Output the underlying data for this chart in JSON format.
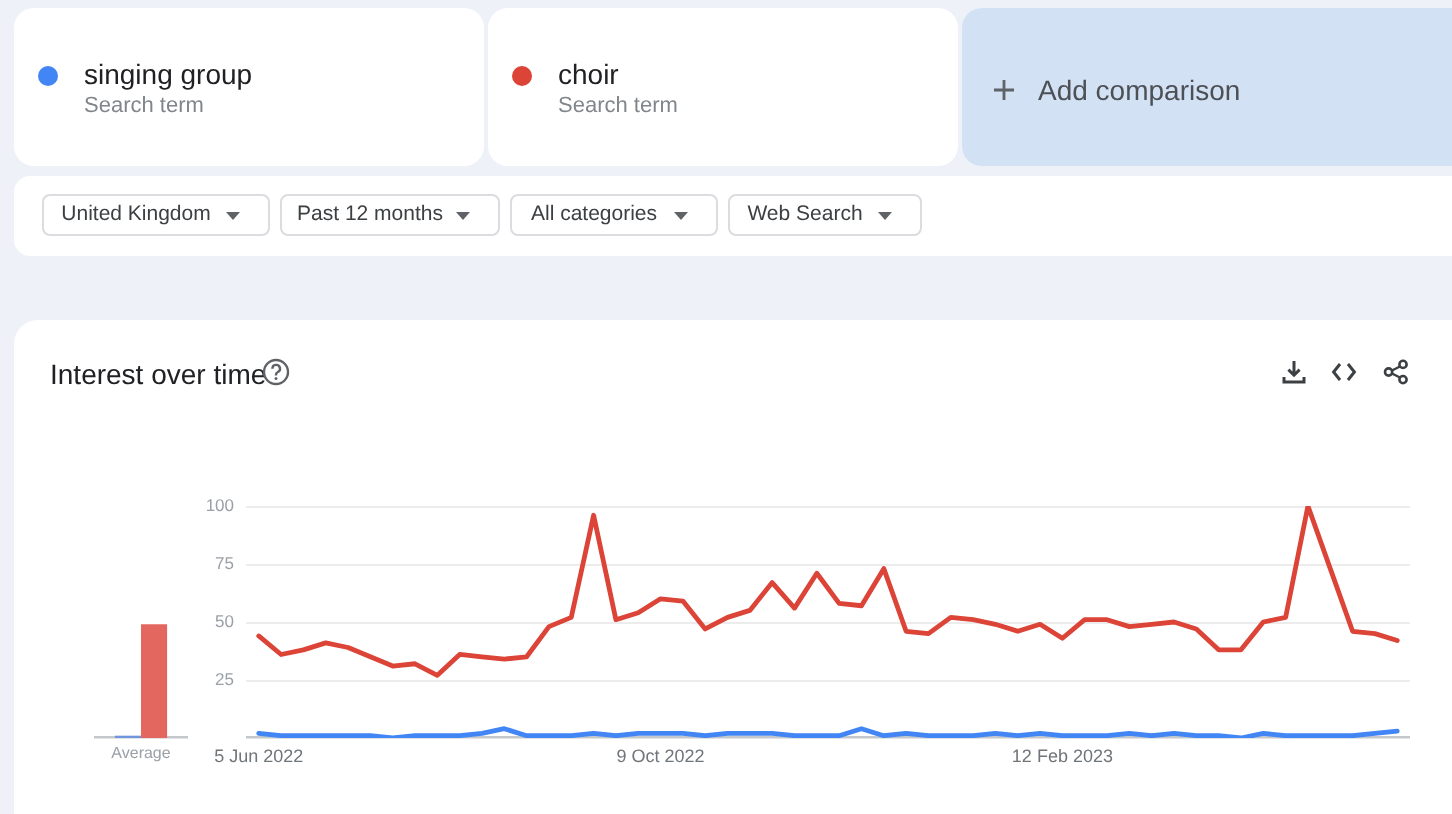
{
  "chart_data": [
    {
      "type": "bar",
      "title": "Interest over time",
      "categories": [
        "Average"
      ],
      "series": [
        {
          "color": "#6f95de",
          "values": [
            1
          ]
        },
        {
          "color": "#e4675f",
          "values": [
            49
          ]
        }
      ],
      "ylim": [
        0,
        100
      ],
      "tick_labels": "x"
    },
    {
      "type": "line",
      "annotations": [
        "Search term",
        "Search term",
        "Add comparison",
        "United Kingdom",
        "Past 12 months",
        "All categories",
        "Web Search"
      ],
      "x": [
        "2022-06-05",
        "2022-06-12",
        "2022-06-19",
        "2022-06-26",
        "2022-07-03",
        "2022-07-10",
        "2022-07-17",
        "2022-07-24",
        "2022-07-31",
        "2022-08-07",
        "2022-08-14",
        "2022-08-21",
        "2022-08-28",
        "2022-09-04",
        "2022-09-11",
        "2022-09-18",
        "2022-09-25",
        "2022-10-02",
        "2022-10-09",
        "2022-10-16",
        "2022-10-23",
        "2022-10-30",
        "2022-11-06",
        "2022-11-13",
        "2022-11-20",
        "2022-11-27",
        "2022-12-04",
        "2022-12-11",
        "2022-12-18",
        "2022-12-25",
        "2023-01-01",
        "2023-01-08",
        "2023-01-15",
        "2023-01-22",
        "2023-01-29",
        "2023-02-05",
        "2023-02-12",
        "2023-02-19",
        "2023-02-26",
        "2023-03-05",
        "2023-03-12",
        "2023-03-19",
        "2023-03-26",
        "2023-04-02",
        "2023-04-09",
        "2023-04-16",
        "2023-04-23",
        "2023-04-30",
        "2023-05-07",
        "2023-05-14",
        "2023-05-21",
        "2023-05-28"
      ],
      "series": [
        {
          "name": "singing group",
          "color": "#4285f4",
          "values": [
            2,
            1,
            1,
            1,
            1,
            1,
            0,
            1,
            1,
            1,
            2,
            4,
            1,
            1,
            1,
            2,
            1,
            2,
            2,
            2,
            1,
            2,
            2,
            2,
            1,
            1,
            1,
            4,
            1,
            2,
            1,
            1,
            1,
            2,
            1,
            2,
            1,
            1,
            1,
            2,
            1,
            2,
            1,
            1,
            0,
            2,
            1,
            1,
            1,
            1,
            2,
            3
          ]
        },
        {
          "name": "choir",
          "color": "#db4437",
          "values": [
            44,
            36,
            38,
            41,
            39,
            35,
            31,
            32,
            27,
            36,
            35,
            34,
            35,
            48,
            52,
            96,
            51,
            54,
            60,
            59,
            47,
            52,
            55,
            67,
            56,
            71,
            58,
            57,
            73,
            46,
            45,
            52,
            51,
            49,
            46,
            49,
            43,
            51,
            51,
            48,
            49,
            50,
            47,
            38,
            38,
            50,
            52,
            100,
            73,
            46,
            45,
            42
          ]
        }
      ],
      "xlim": [
        "2022-06-01",
        "2023-06-01"
      ],
      "xticks": [
        {
          "value": "2022-06-05",
          "label": "5 Jun 2022"
        },
        {
          "value": "2022-10-09",
          "label": "9 Oct 2022"
        },
        {
          "value": "2023-02-12",
          "label": "12 Feb 2023"
        }
      ],
      "ylim": [
        0,
        100
      ],
      "yticks": [
        {
          "value": 0,
          "label": null
        },
        25,
        50,
        75,
        100
      ],
      "grid": "y",
      "legend": "top"
    }
  ]
}
